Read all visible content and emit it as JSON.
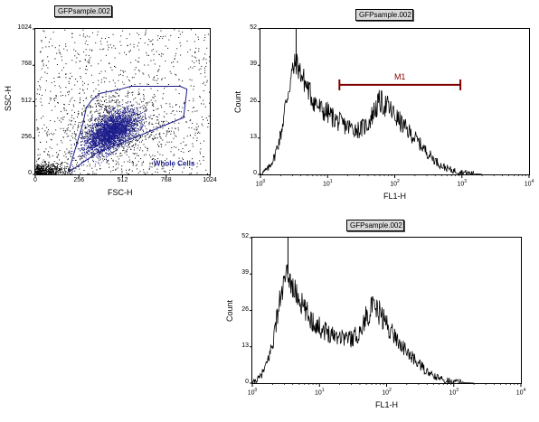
{
  "chart_data": [
    {
      "id": "dot",
      "type": "scatter",
      "title": "GFPsample.002",
      "xlabel": "FSC-H",
      "ylabel": "SSC-H",
      "xlim": [
        0,
        1024
      ],
      "ylim": [
        0,
        1024
      ],
      "x_ticks": [
        "0",
        "256",
        "512",
        "768",
        "1024"
      ],
      "y_ticks": [
        "0",
        "256",
        "512",
        "768",
        "1024"
      ],
      "gate": {
        "label": "Whole Cells",
        "polygon": [
          [
            200,
            20
          ],
          [
            360,
            150
          ],
          [
            870,
            400
          ],
          [
            890,
            600
          ],
          [
            850,
            620
          ],
          [
            560,
            620
          ],
          [
            500,
            600
          ],
          [
            380,
            570
          ],
          [
            330,
            520
          ],
          [
            300,
            470
          ],
          [
            290,
            420
          ],
          [
            280,
            360
          ],
          [
            240,
            200
          ],
          [
            200,
            40
          ]
        ]
      },
      "colors": {
        "dots": "#000000",
        "gated_dots": "#1a1a8c",
        "gate": "#1a1a8c",
        "gate_label": "#1a1a8c"
      }
    },
    {
      "id": "hist1",
      "type": "line",
      "title": "GFPsample.002",
      "xlabel": "FL1-H",
      "ylabel": "Count",
      "scale_x": "log",
      "xlim": [
        1,
        10000
      ],
      "ylim": [
        0,
        52
      ],
      "y_ticks": [
        "0",
        "13",
        "26",
        "39",
        "52"
      ],
      "x_ticks": [
        {
          "base": "10",
          "exp": "0"
        },
        {
          "base": "10",
          "exp": "1"
        },
        {
          "base": "10",
          "exp": "2"
        },
        {
          "base": "10",
          "exp": "3"
        },
        {
          "base": "10",
          "exp": "4"
        }
      ],
      "envelope": {
        "x": [
          1,
          1.3,
          1.6,
          2.0,
          2.5,
          3.0,
          3.4,
          4.0,
          5.0,
          6.0,
          8.0,
          10,
          14,
          20,
          30,
          40,
          50,
          60,
          80,
          100,
          150,
          200,
          300,
          400,
          500,
          700,
          1000,
          1300,
          1600,
          2000
        ],
        "y": [
          0,
          2,
          6,
          14,
          28,
          37,
          40,
          36,
          31,
          27,
          23,
          22,
          19,
          17,
          16,
          18,
          23,
          26,
          24,
          21,
          16,
          13,
          8,
          5,
          3,
          1.5,
          0.8,
          0.4,
          0.2,
          0
        ]
      },
      "spike": {
        "x": 3.4,
        "y": 52
      },
      "marker": {
        "label": "M1",
        "x_range": [
          15,
          950
        ],
        "y": 32,
        "color": "#800000"
      },
      "colors": {
        "line": "#000000"
      }
    },
    {
      "id": "hist2",
      "type": "line",
      "title": "GFPsample.002",
      "xlabel": "FL1-H",
      "ylabel": "Count",
      "scale_x": "log",
      "xlim": [
        1,
        10000
      ],
      "ylim": [
        0,
        52
      ],
      "y_ticks": [
        "0",
        "13",
        "26",
        "39",
        "52"
      ],
      "x_ticks": [
        {
          "base": "10",
          "exp": "0"
        },
        {
          "base": "10",
          "exp": "1"
        },
        {
          "base": "10",
          "exp": "2"
        },
        {
          "base": "10",
          "exp": "3"
        },
        {
          "base": "10",
          "exp": "4"
        }
      ],
      "envelope": {
        "x": [
          1,
          1.3,
          1.6,
          2.0,
          2.5,
          3.0,
          3.4,
          4.0,
          5.0,
          6.0,
          8.0,
          10,
          14,
          20,
          30,
          40,
          50,
          60,
          80,
          100,
          150,
          200,
          300,
          400,
          500,
          700,
          1000,
          1300,
          1600,
          2000
        ],
        "y": [
          0,
          2,
          6,
          14,
          28,
          36,
          39,
          34,
          30,
          26,
          22,
          20,
          18,
          17,
          16,
          18,
          24,
          27,
          25,
          21,
          15,
          11,
          7,
          4,
          2.5,
          1.2,
          0.6,
          0.3,
          0.1,
          0
        ]
      },
      "spike": {
        "x": 3.4,
        "y": 52
      },
      "colors": {
        "line": "#000000"
      }
    }
  ]
}
